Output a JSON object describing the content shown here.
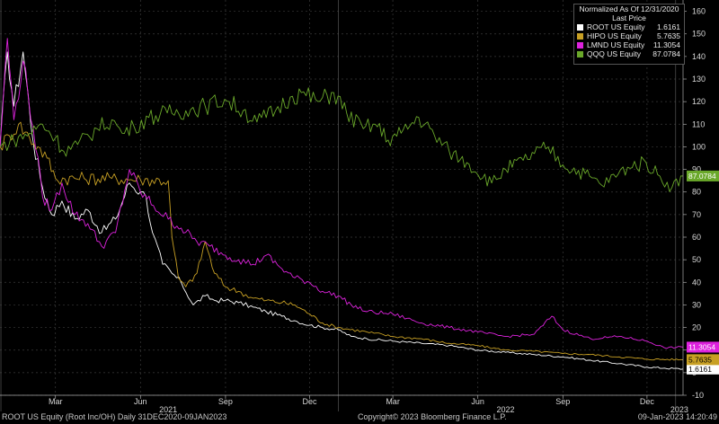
{
  "chart_data": {
    "type": "line",
    "normalization": "Normalized As Of 12/31/2020",
    "price_field": "Last Price",
    "date_range": "31DEC2020-09JAN2023",
    "ylim": [
      -10,
      165
    ],
    "y_ticks": [
      -10,
      0,
      10,
      20,
      30,
      40,
      50,
      60,
      70,
      80,
      90,
      100,
      110,
      120,
      130,
      140,
      150,
      160
    ],
    "x_ticks": [
      "Mar",
      "Jun",
      "Sep",
      "Dec",
      "Mar",
      "Jun",
      "Sep",
      "Dec"
    ],
    "x_year_labels": [
      "2021",
      "2022",
      "2023"
    ],
    "grid": true,
    "legend_position": "top-right",
    "series": [
      {
        "name": "ROOT US Equity",
        "last": "1.6161",
        "color": "#ffffff",
        "x": [
          "2020-12-31",
          "2021-01-08",
          "2021-01-15",
          "2021-01-25",
          "2021-02-05",
          "2021-02-15",
          "2021-02-25",
          "2021-03-08",
          "2021-03-22",
          "2021-04-05",
          "2021-04-20",
          "2021-05-05",
          "2021-05-20",
          "2021-06-01",
          "2021-06-07",
          "2021-06-14",
          "2021-06-25",
          "2021-07-05",
          "2021-07-15",
          "2021-07-28",
          "2021-08-10",
          "2021-08-20",
          "2021-09-01",
          "2021-09-15",
          "2021-10-01",
          "2021-10-15",
          "2021-11-01",
          "2021-11-15",
          "2021-12-01",
          "2021-12-15",
          "2022-01-01",
          "2022-01-15",
          "2022-02-01",
          "2022-03-01",
          "2022-04-01",
          "2022-05-01",
          "2022-06-01",
          "2022-07-01",
          "2022-08-01",
          "2022-09-01",
          "2022-10-01",
          "2022-11-01",
          "2022-12-01",
          "2022-12-20",
          "2023-01-09"
        ],
        "y": [
          100,
          142,
          118,
          142,
          102,
          82,
          70,
          76,
          68,
          72,
          62,
          68,
          84,
          80,
          78,
          62,
          48,
          44,
          40,
          30,
          34,
          32,
          32,
          31,
          29,
          27,
          25,
          23,
          21,
          20,
          19,
          16,
          15,
          14,
          13,
          12,
          10,
          9,
          8,
          7,
          5.5,
          4,
          2.5,
          2,
          1.6161
        ]
      },
      {
        "name": "HIPO US Equity",
        "last": "5.7635",
        "color": "#c8a024",
        "x": [
          "2020-12-31",
          "2021-01-10",
          "2021-01-20",
          "2021-02-01",
          "2021-02-10",
          "2021-02-20",
          "2021-03-01",
          "2021-04-01",
          "2021-05-01",
          "2021-06-01",
          "2021-07-01",
          "2021-07-05",
          "2021-07-12",
          "2021-07-20",
          "2021-08-01",
          "2021-08-10",
          "2021-08-20",
          "2021-09-01",
          "2021-09-15",
          "2021-10-01",
          "2021-10-15",
          "2021-11-01",
          "2021-11-15",
          "2021-12-01",
          "2021-12-15",
          "2022-01-01",
          "2022-02-01",
          "2022-03-01",
          "2022-04-01",
          "2022-05-01",
          "2022-06-01",
          "2022-07-01",
          "2022-08-01",
          "2022-09-01",
          "2022-10-01",
          "2022-11-01",
          "2022-12-01",
          "2023-01-09"
        ],
        "y": [
          100,
          105,
          110,
          104,
          100,
          95,
          86,
          86,
          86,
          85.5,
          85,
          60,
          42,
          38,
          44,
          58,
          44,
          38,
          36,
          33,
          32,
          31,
          30,
          26,
          22,
          20,
          18,
          16,
          15,
          13,
          12,
          10,
          9.5,
          8.5,
          8,
          7,
          6,
          5.7635
        ]
      },
      {
        "name": "LMND US Equity",
        "last": "11.3054",
        "color": "#dd22dd",
        "x": [
          "2020-12-31",
          "2021-01-08",
          "2021-01-15",
          "2021-01-25",
          "2021-02-05",
          "2021-02-15",
          "2021-02-25",
          "2021-03-08",
          "2021-03-22",
          "2021-04-05",
          "2021-04-20",
          "2021-05-05",
          "2021-05-20",
          "2021-06-01",
          "2021-06-15",
          "2021-07-01",
          "2021-07-15",
          "2021-08-01",
          "2021-08-15",
          "2021-09-01",
          "2021-09-15",
          "2021-10-01",
          "2021-10-15",
          "2021-11-01",
          "2021-11-15",
          "2021-12-01",
          "2021-12-15",
          "2022-01-01",
          "2022-01-15",
          "2022-02-01",
          "2022-03-01",
          "2022-04-01",
          "2022-05-01",
          "2022-06-01",
          "2022-07-01",
          "2022-08-01",
          "2022-08-20",
          "2022-09-01",
          "2022-10-01",
          "2022-11-01",
          "2022-12-01",
          "2022-12-20",
          "2023-01-09"
        ],
        "y": [
          100,
          148,
          112,
          138,
          108,
          78,
          72,
          84,
          70,
          66,
          56,
          62,
          90,
          80,
          74,
          68,
          64,
          58,
          56,
          52,
          50,
          48,
          52,
          46,
          42,
          40,
          36,
          34,
          30,
          27,
          26,
          22,
          20,
          18,
          16,
          17,
          25,
          19,
          15,
          16,
          14,
          11,
          11.3054
        ]
      },
      {
        "name": "QQQ US Equity",
        "last": "87.0784",
        "color": "#6aa82a",
        "x": [
          "2020-12-31",
          "2021-01-15",
          "2021-02-01",
          "2021-02-15",
          "2021-03-01",
          "2021-03-10",
          "2021-03-25",
          "2021-04-15",
          "2021-05-01",
          "2021-05-12",
          "2021-05-25",
          "2021-06-10",
          "2021-06-30",
          "2021-07-20",
          "2021-08-10",
          "2021-08-31",
          "2021-09-20",
          "2021-10-05",
          "2021-10-25",
          "2021-11-10",
          "2021-11-22",
          "2021-12-10",
          "2021-12-27",
          "2022-01-10",
          "2022-01-28",
          "2022-02-10",
          "2022-02-24",
          "2022-03-10",
          "2022-03-29",
          "2022-04-15",
          "2022-05-01",
          "2022-05-20",
          "2022-06-16",
          "2022-07-01",
          "2022-07-20",
          "2022-08-16",
          "2022-09-01",
          "2022-09-30",
          "2022-10-13",
          "2022-10-31",
          "2022-11-10",
          "2022-11-30",
          "2022-12-15",
          "2022-12-28",
          "2023-01-09"
        ],
        "y": [
          100,
          103,
          106,
          110,
          104,
          98,
          101,
          108,
          112,
          106,
          109,
          113,
          115,
          116,
          118,
          121,
          116,
          111,
          116,
          122,
          124,
          120,
          124,
          115,
          108,
          110,
          103,
          106,
          113,
          105,
          98,
          93,
          84,
          90,
          94,
          100,
          92,
          87,
          83,
          88,
          91,
          93,
          87,
          82,
          87.0784
        ]
      }
    ]
  },
  "legend": {
    "title": "Normalized As Of 12/31/2020",
    "subtitle": "Last Price",
    "items": [
      {
        "label": "ROOT US Equity",
        "value": "1.6161",
        "color": "#ffffff"
      },
      {
        "label": "HIPO US Equity",
        "value": "5.7635",
        "color": "#c8a024"
      },
      {
        "label": "LMND US Equity",
        "value": "11.3054",
        "color": "#dd22dd"
      },
      {
        "label": "QQQ US Equity",
        "value": "87.0784",
        "color": "#6aa82a"
      }
    ]
  },
  "footer": {
    "left": "ROOT US Equity (Root Inc/OH)  Daily 31DEC2020-09JAN2023",
    "center": "Copyright© 2023 Bloomberg Finance L.P.",
    "right": "09-Jan-2023 14:20:49"
  }
}
